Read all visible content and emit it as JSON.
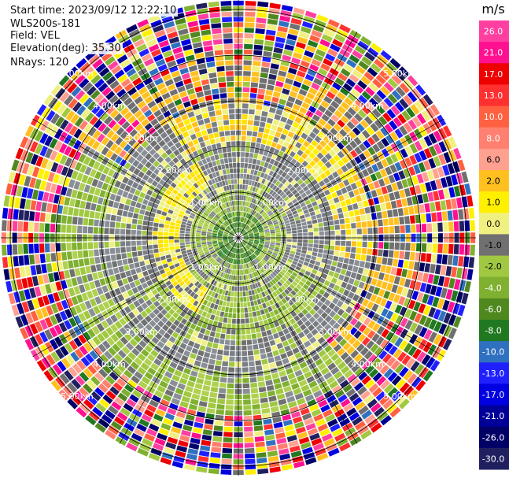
{
  "header": {
    "start_time": "Start time: 2023/09/12 12:22:10",
    "site": "WLS200s-181",
    "field": "Field: VEL",
    "elevation": "Elevation(deg): 35.30",
    "nrays": "NRays: 120"
  },
  "chart_data": {
    "type": "heatmap",
    "projection": "polar PPI",
    "title": "",
    "ring_labels": [
      "1.00km",
      "2.00km",
      "3.00km",
      "4.00km",
      "5.00km"
    ],
    "grid": true,
    "colorbar": {
      "unit": "m/s",
      "ticks": [
        "26.0",
        "21.0",
        "17.0",
        "13.0",
        "10.0",
        "8.0",
        "6.0",
        "2.0",
        "1.0",
        "0.0",
        "-1.0",
        "-2.0",
        "-4.0",
        "-6.0",
        "-8.0",
        "-10.0",
        "-13.0",
        "-17.0",
        "-21.0",
        "-26.0",
        "-30.0"
      ],
      "colors": [
        "#ff3fa0",
        "#ff1090",
        "#ee0000",
        "#ff3030",
        "#ff6040",
        "#ff8070",
        "#ffa090",
        "#ffc020",
        "#fff000",
        "#f0f080",
        "#707070",
        "#a0c840",
        "#80b030",
        "#508820",
        "#207820",
        "#3070c0",
        "#2020ff",
        "#0000e0",
        "#000099",
        "#000066",
        "#202060"
      ]
    },
    "regions": [
      {
        "zone": "center",
        "value": -4.0
      },
      {
        "zone": "inner ring",
        "value": -2.0
      },
      {
        "zone": "north/east arc",
        "value": 2.0
      },
      {
        "zone": "south/west arc",
        "value": -2.0
      },
      {
        "zone": "outer noise",
        "value": "mixed"
      }
    ]
  }
}
